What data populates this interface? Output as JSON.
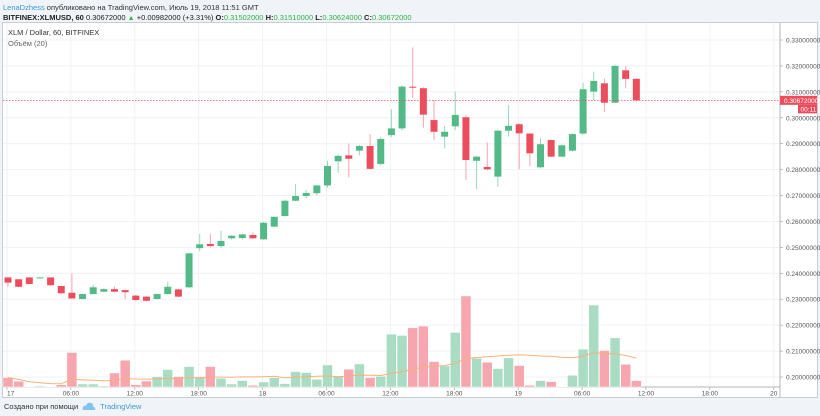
{
  "header": {
    "author": "LenaDzhess",
    "published_text": "опубликовано на TradingView.com, Июль 19, 2018 11:51 GMT",
    "symbol": "BITFINEX:XLMUSD, 60",
    "last": "0.30672000",
    "change": "+0.00982000 (+3.31%)",
    "o_label": "O:",
    "o": "0.31502000",
    "h_label": "H:",
    "h": "0.31510000",
    "l_label": "L:",
    "l": "0.30624000",
    "c_label": "C:",
    "c": "0.30672000"
  },
  "legend": {
    "title": "XLM / Dollar, 60, BITFINEX",
    "volume": "Объём (20)"
  },
  "footer": {
    "created_with": "Создано при помощи",
    "brand": "TradingView"
  },
  "colors": {
    "up": "#53b987",
    "down": "#eb4d5c",
    "up_vol": "#a9dcc3",
    "down_vol": "#f5a6ae",
    "ma": "#f7b17a",
    "last_line": "#eb4d5c"
  },
  "chart_data": {
    "type": "candlestick",
    "interval": "60",
    "price_axis": {
      "min": 0.2,
      "max": 0.33,
      "ticks": [
        "0.33000000",
        "0.32000000",
        "0.31000000",
        "0.30000000",
        "0.29000000",
        "0.28000000",
        "0.27000000",
        "0.26000000",
        "0.25000000",
        "0.24000000",
        "0.23000000",
        "0.22000000",
        "0.21000000",
        "0.20000000"
      ]
    },
    "time_axis": {
      "ticks": [
        "17",
        "06:00",
        "12:00",
        "18:00",
        "18",
        "06:00",
        "12:00",
        "18:00",
        "19",
        "06:00",
        "12:00",
        "18:00",
        "20"
      ]
    },
    "last_price_label": "0.30672000",
    "countdown_label": "00:11",
    "grid": true,
    "ohlc": [
      [
        0.2384,
        0.2386,
        0.2348,
        0.2364
      ],
      [
        0.2377,
        0.2378,
        0.2346,
        0.2348
      ],
      [
        0.2384,
        0.2386,
        0.2358,
        0.2359
      ],
      [
        0.2384,
        0.2385,
        0.2383,
        0.2384
      ],
      [
        0.2384,
        0.2385,
        0.2352,
        0.2354
      ],
      [
        0.2351,
        0.2352,
        0.2321,
        0.2323
      ],
      [
        0.2325,
        0.24,
        0.2302,
        0.2303
      ],
      [
        0.2301,
        0.2322,
        0.2299,
        0.232
      ],
      [
        0.232,
        0.2357,
        0.2318,
        0.2346
      ],
      [
        0.2329,
        0.2342,
        0.2327,
        0.2339
      ],
      [
        0.2339,
        0.2348,
        0.2327,
        0.2329
      ],
      [
        0.2335,
        0.2337,
        0.23,
        0.2327
      ],
      [
        0.2314,
        0.2316,
        0.2293,
        0.2297
      ],
      [
        0.231,
        0.2312,
        0.2292,
        0.2294
      ],
      [
        0.2301,
        0.2322,
        0.2299,
        0.232
      ],
      [
        0.232,
        0.2368,
        0.2318,
        0.2348
      ],
      [
        0.2338,
        0.234,
        0.2308,
        0.231
      ],
      [
        0.2346,
        0.2478,
        0.2344,
        0.2477
      ],
      [
        0.2497,
        0.2552,
        0.2485,
        0.2512
      ],
      [
        0.2513,
        0.2551,
        0.25,
        0.2505
      ],
      [
        0.2505,
        0.2564,
        0.2498,
        0.2525
      ],
      [
        0.2535,
        0.2548,
        0.253,
        0.2545
      ],
      [
        0.2536,
        0.2552,
        0.253,
        0.255
      ],
      [
        0.2548,
        0.2558,
        0.2532,
        0.2535
      ],
      [
        0.2531,
        0.2598,
        0.2529,
        0.2595
      ],
      [
        0.258,
        0.262,
        0.2578,
        0.2618
      ],
      [
        0.2621,
        0.2682,
        0.2619,
        0.268
      ],
      [
        0.268,
        0.2744,
        0.2678,
        0.2698
      ],
      [
        0.2698,
        0.2722,
        0.269,
        0.271
      ],
      [
        0.2709,
        0.274,
        0.27,
        0.2739
      ],
      [
        0.2739,
        0.2834,
        0.273,
        0.2814
      ],
      [
        0.2832,
        0.2858,
        0.2788,
        0.2853
      ],
      [
        0.2855,
        0.2901,
        0.277,
        0.2842
      ],
      [
        0.2873,
        0.2895,
        0.2855,
        0.2891
      ],
      [
        0.2891,
        0.2937,
        0.28,
        0.2803
      ],
      [
        0.2822,
        0.2925,
        0.2815,
        0.2918
      ],
      [
        0.2933,
        0.3033,
        0.2925,
        0.2959
      ],
      [
        0.2959,
        0.3125,
        0.295,
        0.312
      ],
      [
        0.312,
        0.3272,
        0.3075,
        0.3116
      ],
      [
        0.3114,
        0.3118,
        0.2962,
        0.3012
      ],
      [
        0.2991,
        0.3068,
        0.2914,
        0.2946
      ],
      [
        0.2927,
        0.2968,
        0.2882,
        0.2946
      ],
      [
        0.2967,
        0.3101,
        0.2953,
        0.3011
      ],
      [
        0.3002,
        0.301,
        0.276,
        0.2837
      ],
      [
        0.2834,
        0.2852,
        0.2724,
        0.285
      ],
      [
        0.281,
        0.2905,
        0.2798,
        0.2801
      ],
      [
        0.2773,
        0.2955,
        0.2734,
        0.295
      ],
      [
        0.295,
        0.3049,
        0.2927,
        0.2969
      ],
      [
        0.2975,
        0.298,
        0.2801,
        0.294
      ],
      [
        0.2939,
        0.2941,
        0.2814,
        0.2863
      ],
      [
        0.2809,
        0.2921,
        0.2805,
        0.2898
      ],
      [
        0.2914,
        0.2916,
        0.2848,
        0.285
      ],
      [
        0.285,
        0.2896,
        0.2848,
        0.2894
      ],
      [
        0.2873,
        0.294,
        0.287,
        0.2937
      ],
      [
        0.2939,
        0.3135,
        0.2935,
        0.311
      ],
      [
        0.3101,
        0.3178,
        0.3068,
        0.3142
      ],
      [
        0.3133,
        0.3151,
        0.3023,
        0.3058
      ],
      [
        0.3058,
        0.3205,
        0.3056,
        0.32
      ],
      [
        0.3183,
        0.32,
        0.3114,
        0.315
      ],
      [
        0.31502,
        0.3151,
        0.30624,
        0.30672
      ]
    ],
    "volume_relative": [
      9.4,
      5.7,
      0.5,
      1,
      0.5,
      2.3,
      34.4,
      3,
      3,
      1,
      14,
      26.7,
      2.3,
      6,
      10.4,
      17.4,
      10.4,
      20.4,
      9.4,
      20.4,
      8.7,
      3,
      6.4,
      1.7,
      5,
      9.4,
      3.4,
      15.4,
      14.4,
      7.7,
      22,
      11,
      17.7,
      23,
      9.4,
      10.7,
      52.7,
      51.4,
      59,
      60.7,
      25.4,
      21,
      54.4,
      90.7,
      28.7,
      24.7,
      18.4,
      29,
      21.4,
      1.7,
      6.4,
      5.4,
      0.5,
      11.7,
      37.7,
      81.7,
      36.4,
      49,
      22.7,
      6.4
    ],
    "volume_ma_period": 20
  }
}
